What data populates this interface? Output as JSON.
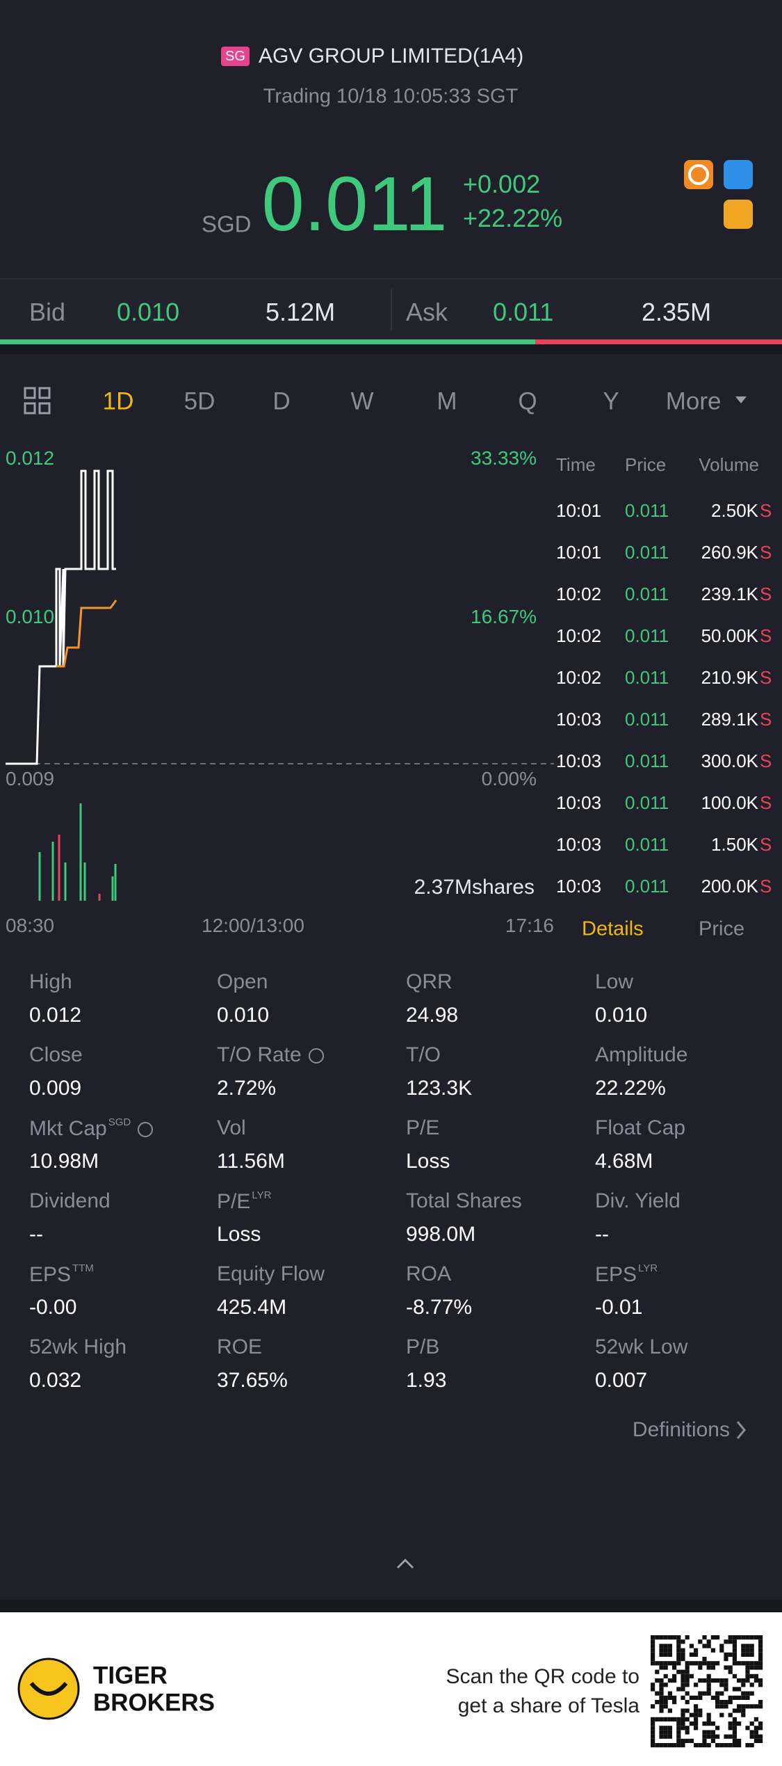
{
  "header": {
    "badge": "SG",
    "name": "AGV GROUP LIMITED(1A4)",
    "status": "Trading 10/18 10:05:33 SGT"
  },
  "quote": {
    "currency": "SGD",
    "price": "0.011",
    "change": "+0.002",
    "change_pct": "+22.22%"
  },
  "bid_ask": {
    "bid_label": "Bid",
    "bid_price": "0.010",
    "bid_size": "5.12M",
    "ask_label": "Ask",
    "ask_price": "0.011",
    "ask_size": "2.35M"
  },
  "tabs": [
    "1D",
    "5D",
    "D",
    "W",
    "M",
    "Q",
    "Y",
    "More"
  ],
  "chart": {
    "price_labels": [
      "0.012",
      "0.010",
      "0.009"
    ],
    "pct_labels": [
      "33.33%",
      "16.67%",
      "0.00%"
    ],
    "volume_label": "2.37Mshares",
    "time_labels": [
      "08:30",
      "12:00/13:00",
      "17:16"
    ]
  },
  "trades": {
    "headers": [
      "Time",
      "Price",
      "Volume"
    ],
    "rows": [
      [
        "10:01",
        "0.011",
        "2.50K",
        "S"
      ],
      [
        "10:01",
        "0.011",
        "260.9K",
        "S"
      ],
      [
        "10:02",
        "0.011",
        "239.1K",
        "S"
      ],
      [
        "10:02",
        "0.011",
        "50.00K",
        "S"
      ],
      [
        "10:02",
        "0.011",
        "210.9K",
        "S"
      ],
      [
        "10:03",
        "0.011",
        "289.1K",
        "S"
      ],
      [
        "10:03",
        "0.011",
        "300.0K",
        "S"
      ],
      [
        "10:03",
        "0.011",
        "100.0K",
        "S"
      ],
      [
        "10:03",
        "0.011",
        "1.50K",
        "S"
      ],
      [
        "10:03",
        "0.011",
        "200.0K",
        "S"
      ]
    ],
    "tabs": [
      "Details",
      "Price"
    ]
  },
  "stats": [
    {
      "label": "High",
      "value": "0.012"
    },
    {
      "label": "Open",
      "value": "0.010"
    },
    {
      "label": "QRR",
      "value": "24.98"
    },
    {
      "label": "Low",
      "value": "0.010"
    },
    {
      "label": "Close",
      "value": "0.009"
    },
    {
      "label": "T/O Rate",
      "value": "2.72%"
    },
    {
      "label": "T/O",
      "value": "123.3K"
    },
    {
      "label": "Amplitude",
      "value": "22.22%"
    },
    {
      "label": "Mkt Cap",
      "sup": "SGD",
      "value": "10.98M"
    },
    {
      "label": "Vol",
      "value": "11.56M"
    },
    {
      "label": "P/E",
      "value": "Loss"
    },
    {
      "label": "Float Cap",
      "value": "4.68M"
    },
    {
      "label": "Dividend",
      "value": "--"
    },
    {
      "label": "P/E",
      "sup": "LYR",
      "value": "Loss"
    },
    {
      "label": "Total Shares",
      "value": "998.0M"
    },
    {
      "label": "Div. Yield",
      "value": "--"
    },
    {
      "label": "EPS",
      "sup": "TTM",
      "value": "-0.00"
    },
    {
      "label": "Equity Flow",
      "value": "425.4M"
    },
    {
      "label": "ROA",
      "value": "-8.77%"
    },
    {
      "label": "EPS",
      "sup": "LYR",
      "value": "-0.01"
    },
    {
      "label": "52wk High",
      "value": "0.032"
    },
    {
      "label": "ROE",
      "value": "37.65%"
    },
    {
      "label": "P/B",
      "value": "1.93"
    },
    {
      "label": "52wk Low",
      "value": "0.007"
    }
  ],
  "definitions": "Definitions",
  "footer": {
    "brand": [
      "TIGER",
      "BROKERS"
    ],
    "promo": [
      "Scan the QR code to",
      "get a share of Tesla"
    ]
  }
}
